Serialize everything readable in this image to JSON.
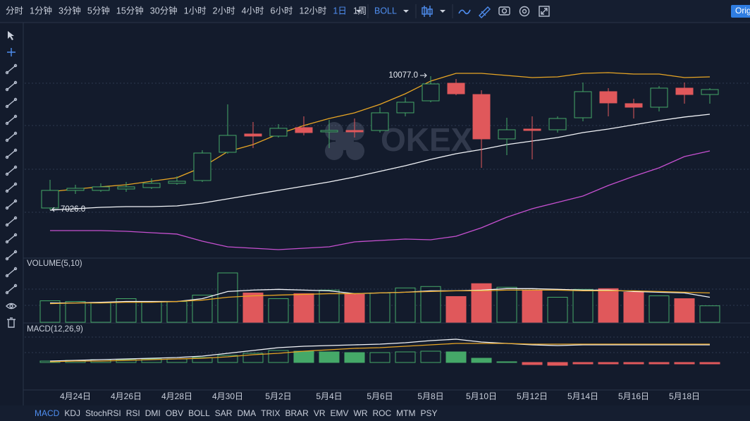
{
  "toolbar": {
    "intervals": [
      "分时",
      "1分钟",
      "3分钟",
      "5分钟",
      "15分钟",
      "30分钟",
      "1小时",
      "2小时",
      "4小时",
      "6小时",
      "12小时",
      "1日",
      "1周"
    ],
    "active_interval": "1日",
    "indicator": "BOLL",
    "button": "Orig"
  },
  "watermark": "OKEX",
  "indicator_tabs": [
    "MACD",
    "KDJ",
    "StochRSI",
    "RSI",
    "DMI",
    "OBV",
    "BOLL",
    "SAR",
    "DMA",
    "TRIX",
    "BRAR",
    "VR",
    "EMV",
    "WR",
    "ROC",
    "MTM",
    "PSY"
  ],
  "chart_data": [
    {
      "type": "candlestick",
      "categories": [
        null,
        "4月24日",
        null,
        "4月26日",
        null,
        "4月28日",
        null,
        "4月30日",
        null,
        "5月2日",
        null,
        "5月4日",
        null,
        "5月6日",
        null,
        "5月8日",
        null,
        "5月10日",
        null,
        "5月12日",
        null,
        "5月14日",
        null,
        "5月16日",
        null,
        "5月18日",
        null
      ],
      "open": [
        7074,
        7475,
        7475,
        7507,
        7540,
        7636,
        7700,
        8343,
        8760,
        8712,
        8905,
        8808,
        8840,
        8840,
        9242,
        9515,
        9916,
        9659,
        8648,
        8872,
        8856,
        9129,
        9724,
        9451,
        9370,
        9804,
        9659
      ],
      "high": [
        7716,
        7604,
        7636,
        7668,
        7748,
        7796,
        8391,
        9435,
        9033,
        8985,
        9162,
        9081,
        9113,
        9370,
        9595,
        10077,
        10013,
        9756,
        9129,
        9162,
        9162,
        9932,
        9804,
        9563,
        9852,
        9932,
        9804
      ],
      "low": [
        7026,
        7395,
        7443,
        7443,
        7507,
        7604,
        7668,
        8310,
        8439,
        8680,
        8728,
        8439,
        8680,
        8792,
        9162,
        9483,
        9643,
        7989,
        8278,
        8182,
        8792,
        9049,
        9162,
        9113,
        9274,
        9451,
        9451
      ],
      "close": [
        7475,
        7523,
        7556,
        7556,
        7636,
        7684,
        8326,
        8728,
        8712,
        8889,
        8792,
        8840,
        8808,
        9242,
        9483,
        9900,
        9675,
        8648,
        8856,
        8840,
        9113,
        9724,
        9467,
        9370,
        9804,
        9659,
        9772
      ],
      "up_color": "#45a868",
      "down_color": "#e0585b",
      "series": [
        {
          "color": "#e7a524",
          "values": [
            7443,
            7507,
            7556,
            7604,
            7684,
            7764,
            8005,
            8359,
            8519,
            8760,
            8953,
            9113,
            9242,
            9435,
            9675,
            9965,
            10141,
            10141,
            10093,
            10045,
            10061,
            10141,
            10157,
            10125,
            10125,
            10045,
            10061
          ]
        },
        {
          "color": "#f2f4f8",
          "values": [
            7026,
            7058,
            7090,
            7106,
            7106,
            7122,
            7186,
            7283,
            7379,
            7475,
            7572,
            7668,
            7780,
            7909,
            8037,
            8182,
            8310,
            8407,
            8519,
            8599,
            8680,
            8792,
            8872,
            8969,
            9065,
            9146,
            9210
          ]
        },
        {
          "color": "#c650d0",
          "values": [
            6560,
            6560,
            6560,
            6544,
            6512,
            6480,
            6319,
            6190,
            6158,
            6126,
            6158,
            6190,
            6303,
            6335,
            6367,
            6351,
            6431,
            6624,
            6865,
            7058,
            7202,
            7347,
            7588,
            7796,
            7989,
            8246,
            8375
          ]
        }
      ],
      "annotations": [
        {
          "value": 10077,
          "label": "10077.0"
        },
        {
          "value": 7026,
          "label": "7026.0"
        }
      ]
    },
    {
      "type": "bar",
      "title": "VOLUME(5,10)",
      "values": [
        30,
        29,
        27,
        33,
        29,
        29,
        38,
        69,
        41,
        33,
        40,
        45,
        39,
        41,
        48,
        50,
        36,
        54,
        49,
        45,
        35,
        46,
        47,
        42,
        37,
        33,
        23
      ],
      "series": [
        {
          "color": "#f2f4f8",
          "values": [
            27,
            27,
            28,
            29,
            29,
            29,
            33,
            43,
            45,
            46,
            45,
            44,
            40,
            41,
            42,
            44,
            44,
            45,
            47,
            47,
            46,
            45,
            45,
            43,
            42,
            41,
            35
          ]
        },
        {
          "color": "#e7a524",
          "values": [
            26,
            27,
            27,
            28,
            28,
            29,
            31,
            35,
            37,
            38,
            39,
            40,
            40,
            41,
            42,
            43,
            44,
            44,
            45,
            45,
            45,
            44,
            44,
            44,
            43,
            42,
            41
          ]
        }
      ]
    },
    {
      "type": "bar",
      "title": "MACD(12,26,9)",
      "values": [
        2,
        3,
        4,
        4,
        5,
        5,
        7,
        10,
        13,
        17,
        16,
        15,
        14,
        14,
        15,
        16,
        15,
        6,
        1,
        -3,
        -4,
        -2,
        -2,
        -2,
        -2,
        -2,
        -2
      ],
      "series": [
        {
          "color": "#f2f4f8",
          "values": [
            2,
            3,
            4,
            5,
            6,
            7,
            9,
            13,
            17,
            21,
            23,
            24,
            25,
            26,
            28,
            31,
            33,
            29,
            27,
            25,
            24,
            25,
            25,
            25,
            25,
            25,
            25
          ]
        },
        {
          "color": "#e7a524",
          "values": [
            1,
            2,
            2,
            3,
            4,
            5,
            6,
            8,
            11,
            13,
            16,
            18,
            20,
            21,
            23,
            25,
            27,
            27,
            27,
            26,
            26,
            26,
            26,
            26,
            26,
            26,
            26
          ]
        }
      ]
    }
  ]
}
